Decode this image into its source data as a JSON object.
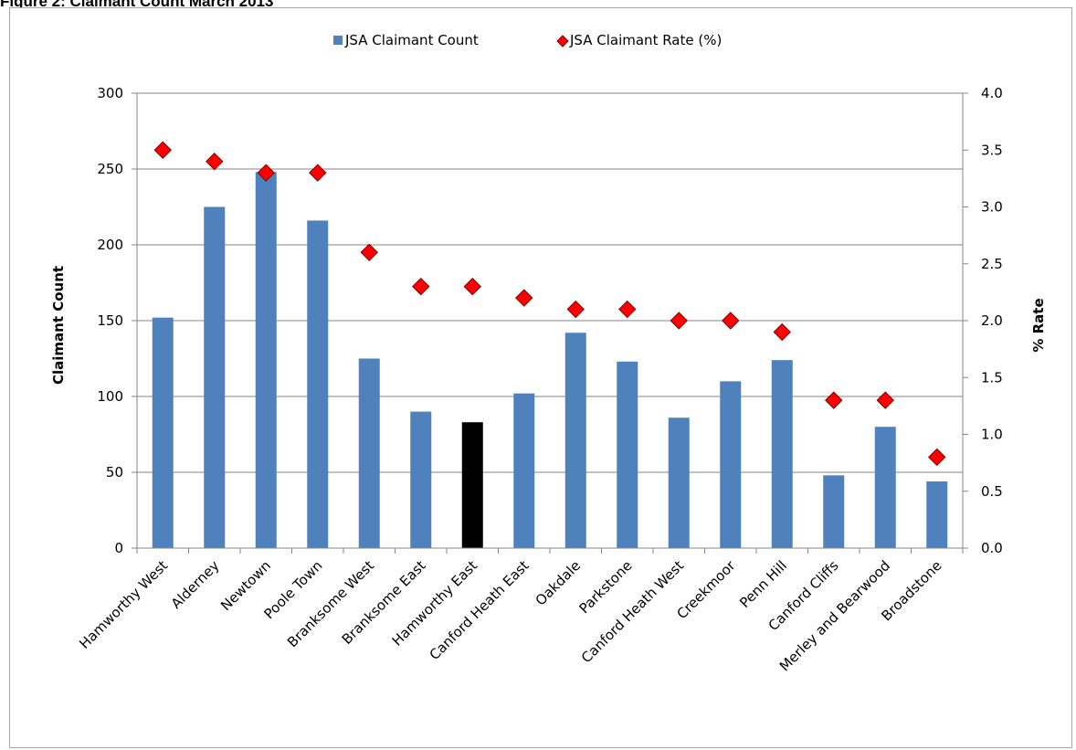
{
  "figure_title": "Figure 2: Claimant Count March 2013",
  "colors": {
    "bar": "#4f81bd",
    "highlight_bar": "#000000",
    "marker_fill": "#ff0000",
    "marker_stroke": "#7f0000",
    "gridline": "#868686"
  },
  "chart_data": {
    "type": "bar",
    "title": "",
    "categories": [
      "Hamworthy West",
      "Alderney",
      "Newtown",
      "Poole Town",
      "Branksome West",
      "Branksome East",
      "Hamworthy East",
      "Canford Heath East",
      "Oakdale",
      "Parkstone",
      "Canford Heath West",
      "Creekmoor",
      "Penn Hill",
      "Canford Cliffs",
      "Merley and Bearwood",
      "Broadstone"
    ],
    "highlight_category": "Hamworthy East",
    "series": [
      {
        "name": "JSA Claimant Count",
        "type": "bar",
        "axis": "left",
        "values": [
          152,
          225,
          248,
          216,
          125,
          90,
          83,
          102,
          142,
          123,
          86,
          110,
          124,
          48,
          80,
          44
        ]
      },
      {
        "name": "JSA Claimant Rate (%)",
        "type": "scatter",
        "marker": "diamond",
        "axis": "right",
        "values": [
          3.5,
          3.4,
          3.3,
          3.3,
          2.6,
          2.3,
          2.3,
          2.2,
          2.1,
          2.1,
          2.0,
          2.0,
          1.9,
          1.3,
          1.3,
          0.8
        ]
      }
    ],
    "ylabel": "Claimant Count",
    "y2label": "% Rate",
    "xlabel": "",
    "ylim": [
      0,
      300
    ],
    "y2lim": [
      0,
      4
    ],
    "yticks": [
      "0",
      "50",
      "100",
      "150",
      "200",
      "250",
      "300"
    ],
    "y2ticks": [
      "0.0",
      "0.5",
      "1.0",
      "1.5",
      "2.0",
      "2.5",
      "3.0",
      "3.5",
      "4.0"
    ],
    "grid": true,
    "legend_position": "top"
  }
}
